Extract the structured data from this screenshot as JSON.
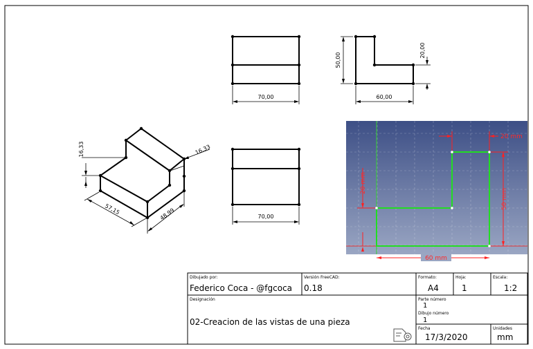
{
  "front_view": {
    "width_dim": "70,00"
  },
  "side_view": {
    "height_dim": "50,00",
    "step_dim": "20,00",
    "width_dim": "60,00"
  },
  "top_view": {
    "width_dim": "70,00"
  },
  "iso_view": {
    "dim_left_height": "16,33",
    "dim_right_height": "16,33",
    "dim_left_base": "57,15",
    "dim_right_base": "48,99"
  },
  "sketch_inset": {
    "background_top": "#3d4f86",
    "background_bottom": "#9aa6c3",
    "profile_color": "#22dd22",
    "dimension_color": "#ff2020",
    "dim_top": "20 mm",
    "dim_left": "20 mm",
    "dim_right": "50 mm",
    "dim_bottom": "60 mm"
  },
  "title_block": {
    "drawn_by_label": "Dibujado por:",
    "drawn_by": "Federico Coca - @fgcoca",
    "freecad_version_label": "Versión FreeCAD:",
    "freecad_version": "0.18",
    "format_label": "Formato:",
    "format": "A4",
    "sheet_label": "Hoja:",
    "sheet": "1",
    "scale_label": "Escala:",
    "scale": "1:2",
    "designation_label": "Designación",
    "designation": "02-Creacion de las vistas de una pieza",
    "part_number_label": "Parte número",
    "part_number": "1",
    "drawing_number_label": "Dibujo número",
    "drawing_number": "1",
    "date_label": "Fecha",
    "date": "17/3/2020",
    "units_label": "Unidades",
    "units": "mm"
  }
}
